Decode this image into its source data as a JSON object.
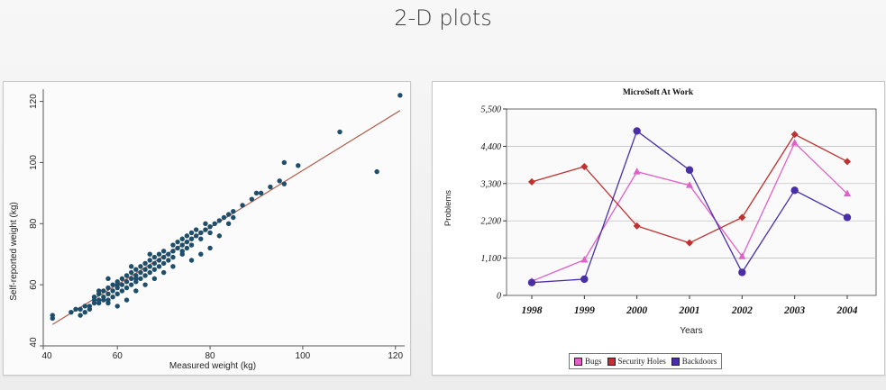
{
  "slide": {
    "title": "2-D plots"
  },
  "chart_data": [
    {
      "type": "scatter",
      "title": "",
      "xlabel": "Measured weight (kg)",
      "ylabel": "Self-reported weight (kg)",
      "xlim": [
        44,
        122
      ],
      "ylim": [
        40,
        124
      ],
      "xticks": [
        40,
        60,
        80,
        100,
        120
      ],
      "yticks": [
        40,
        60,
        80,
        100,
        120
      ],
      "grid": false,
      "marker_color": "#1f4e6b",
      "fit_line_color": "#b05a4a",
      "fit_line": {
        "x": [
          46,
          121
        ],
        "y": [
          47,
          117
        ]
      },
      "points": [
        [
          46,
          50
        ],
        [
          46,
          49
        ],
        [
          50,
          51
        ],
        [
          51,
          52
        ],
        [
          52,
          52
        ],
        [
          52,
          50
        ],
        [
          53,
          53
        ],
        [
          53,
          51
        ],
        [
          54,
          53
        ],
        [
          55,
          55
        ],
        [
          55,
          54
        ],
        [
          55,
          56
        ],
        [
          56,
          55
        ],
        [
          56,
          57
        ],
        [
          56,
          54
        ],
        [
          57,
          56
        ],
        [
          57,
          58
        ],
        [
          57,
          55
        ],
        [
          58,
          57
        ],
        [
          58,
          55
        ],
        [
          58,
          59
        ],
        [
          59,
          58
        ],
        [
          59,
          56
        ],
        [
          59,
          60
        ],
        [
          60,
          59
        ],
        [
          60,
          57
        ],
        [
          60,
          61
        ],
        [
          60,
          60
        ],
        [
          61,
          60
        ],
        [
          61,
          58
        ],
        [
          61,
          62
        ],
        [
          62,
          61
        ],
        [
          62,
          59
        ],
        [
          62,
          63
        ],
        [
          63,
          62
        ],
        [
          63,
          64
        ],
        [
          63,
          60
        ],
        [
          64,
          63
        ],
        [
          64,
          65
        ],
        [
          64,
          61
        ],
        [
          64,
          62
        ],
        [
          65,
          64
        ],
        [
          65,
          66
        ],
        [
          65,
          62
        ],
        [
          66,
          65
        ],
        [
          66,
          67
        ],
        [
          66,
          63
        ],
        [
          67,
          66
        ],
        [
          67,
          68
        ],
        [
          67,
          64
        ],
        [
          68,
          67
        ],
        [
          68,
          65
        ],
        [
          68,
          69
        ],
        [
          69,
          68
        ],
        [
          69,
          66
        ],
        [
          69,
          70
        ],
        [
          70,
          69
        ],
        [
          70,
          67
        ],
        [
          70,
          71
        ],
        [
          71,
          70
        ],
        [
          71,
          68
        ],
        [
          72,
          71
        ],
        [
          72,
          73
        ],
        [
          72,
          69
        ],
        [
          73,
          72
        ],
        [
          73,
          74
        ],
        [
          74,
          73
        ],
        [
          74,
          71
        ],
        [
          74,
          75
        ],
        [
          75,
          74
        ],
        [
          75,
          72
        ],
        [
          75,
          76
        ],
        [
          76,
          75
        ],
        [
          76,
          77
        ],
        [
          76,
          73
        ],
        [
          77,
          76
        ],
        [
          77,
          78
        ],
        [
          78,
          77
        ],
        [
          78,
          75
        ],
        [
          79,
          78
        ],
        [
          79,
          80
        ],
        [
          80,
          79
        ],
        [
          80,
          77
        ],
        [
          81,
          80
        ],
        [
          82,
          81
        ],
        [
          83,
          82
        ],
        [
          84,
          83
        ],
        [
          85,
          84
        ],
        [
          85,
          82
        ],
        [
          87,
          86
        ],
        [
          89,
          88
        ],
        [
          90,
          90
        ],
        [
          91,
          90
        ],
        [
          93,
          92
        ],
        [
          95,
          94
        ],
        [
          96,
          100
        ],
        [
          96,
          93
        ],
        [
          99,
          99
        ],
        [
          108,
          110
        ],
        [
          116,
          97
        ],
        [
          121,
          122
        ],
        [
          58,
          54
        ],
        [
          60,
          53
        ],
        [
          62,
          55
        ],
        [
          64,
          58
        ],
        [
          66,
          60
        ],
        [
          68,
          62
        ],
        [
          70,
          64
        ],
        [
          72,
          66
        ],
        [
          74,
          70
        ],
        [
          76,
          68
        ],
        [
          78,
          70
        ],
        [
          80,
          72
        ],
        [
          82,
          76
        ],
        [
          84,
          80
        ],
        [
          56,
          58
        ],
        [
          54,
          52
        ],
        [
          58,
          62
        ],
        [
          63,
          66
        ],
        [
          67,
          70
        ]
      ]
    },
    {
      "type": "line",
      "title": "MicroSoft At Work",
      "xlabel": "Years",
      "ylabel": "Problems",
      "categories": [
        "1998",
        "1999",
        "2000",
        "2001",
        "2002",
        "2003",
        "2004"
      ],
      "ylim": [
        0,
        5500
      ],
      "yticks": [
        0,
        1100,
        2200,
        3300,
        4400,
        5500
      ],
      "ytick_labels": [
        "0",
        "1,100",
        "2,200",
        "3,300",
        "4,400",
        "5,500"
      ],
      "grid": true,
      "legend_position": "bottom",
      "series": [
        {
          "name": "Bugs",
          "color": "#e060c8",
          "marker": "triangle",
          "values": [
            420,
            1050,
            3650,
            3250,
            1150,
            4500,
            3000
          ]
        },
        {
          "name": "Security Holes",
          "color": "#c03030",
          "marker": "diamond",
          "values": [
            3350,
            3800,
            2050,
            1550,
            2300,
            4750,
            3950
          ]
        },
        {
          "name": "Backdoors",
          "color": "#4a2ea8",
          "marker": "circle",
          "values": [
            380,
            480,
            4850,
            3700,
            680,
            3100,
            2300
          ]
        }
      ]
    }
  ]
}
